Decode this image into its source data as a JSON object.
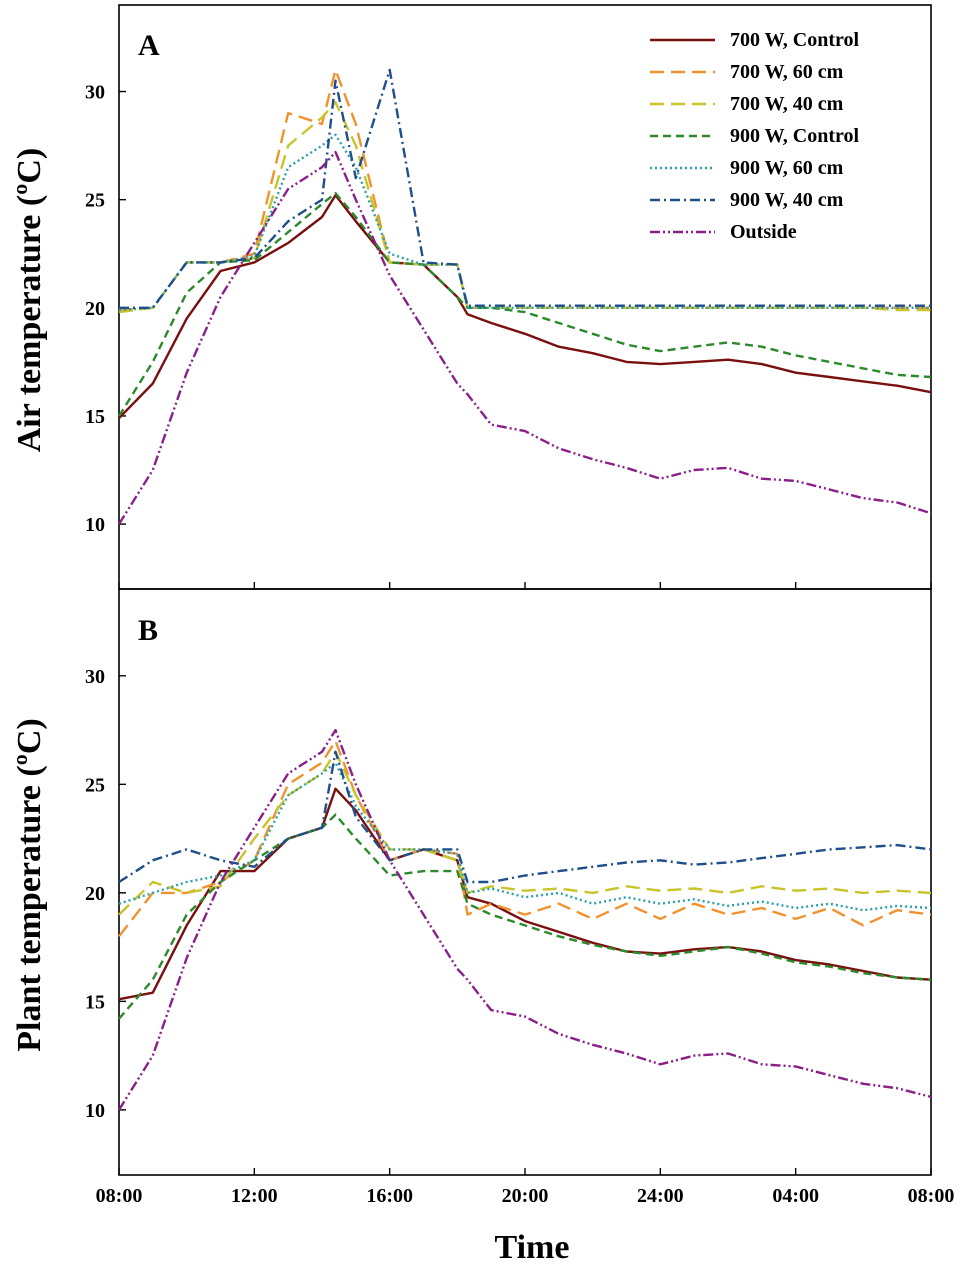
{
  "chart_data": {
    "type": "line",
    "xlabel": "Time",
    "x_ticks": [
      "08:00",
      "12:00",
      "16:00",
      "20:00",
      "24:00",
      "04:00",
      "08:00"
    ],
    "x_hours": [
      8,
      9,
      10,
      11,
      12,
      13,
      14,
      14.4,
      15,
      16,
      17,
      18,
      18.3,
      19,
      20,
      21,
      22,
      23,
      24,
      25,
      26,
      27,
      28,
      29,
      30,
      31,
      32
    ],
    "legend_position": "top-right",
    "series_styles": [
      {
        "name": "700 W, Control",
        "color": "#7a0f0f",
        "dash": ""
      },
      {
        "name": "700 W, 60 cm",
        "color": "#f0922e",
        "dash": "14,7"
      },
      {
        "name": "700 W, 40 cm",
        "color": "#c8c42a",
        "dash": "14,7"
      },
      {
        "name": "900 W, Control",
        "color": "#2b8a2b",
        "dash": "8,5"
      },
      {
        "name": "900 W, 60 cm",
        "color": "#2aa0a8",
        "dash": "2,3"
      },
      {
        "name": "900 W, 40 cm",
        "color": "#1f4f8a",
        "dash": "10,4,2,4"
      },
      {
        "name": "Outside",
        "color": "#8a1f8a",
        "dash": "10,3,2,3,2,3"
      }
    ],
    "panels": [
      {
        "label": "A",
        "ylabel": "Air temperature (ºC)",
        "ylim": [
          7,
          34
        ],
        "y_ticks": [
          10,
          15,
          20,
          25,
          30
        ],
        "series": [
          {
            "name": "700 W, Control",
            "values": [
              14.9,
              16.5,
              19.5,
              21.7,
              22.1,
              23.0,
              24.2,
              25.2,
              24.0,
              22.1,
              22.0,
              20.5,
              19.7,
              19.3,
              18.8,
              18.2,
              17.9,
              17.5,
              17.4,
              17.5,
              17.6,
              17.4,
              17.0,
              16.8,
              16.6,
              16.4,
              16.1
            ]
          },
          {
            "name": "700 W, 60 cm",
            "values": [
              19.9,
              20.0,
              22.1,
              22.1,
              22.5,
              29.0,
              28.5,
              31.0,
              28.5,
              22.1,
              22.0,
              22.0,
              20.0,
              20.0,
              20.0,
              20.0,
              20.0,
              20.0,
              20.0,
              20.0,
              20.0,
              20.0,
              20.0,
              20.0,
              20.0,
              20.0,
              20.0
            ]
          },
          {
            "name": "700 W, 40 cm",
            "values": [
              19.8,
              20.0,
              22.1,
              22.1,
              22.3,
              27.5,
              28.8,
              29.5,
              27.5,
              22.1,
              22.0,
              22.0,
              20.0,
              20.0,
              20.0,
              20.0,
              20.0,
              20.0,
              20.0,
              20.0,
              20.0,
              20.0,
              20.0,
              20.0,
              20.0,
              19.9,
              19.9
            ]
          },
          {
            "name": "900 W, Control",
            "values": [
              15.0,
              17.5,
              20.7,
              22.1,
              22.2,
              23.5,
              24.8,
              25.3,
              24.2,
              22.1,
              22.0,
              20.5,
              20.0,
              20.0,
              19.8,
              19.3,
              18.8,
              18.3,
              18.0,
              18.2,
              18.4,
              18.2,
              17.8,
              17.5,
              17.2,
              16.9,
              16.8
            ]
          },
          {
            "name": "900 W, 60 cm",
            "values": [
              19.9,
              20.0,
              22.1,
              22.1,
              22.4,
              26.5,
              27.5,
              28.0,
              26.5,
              22.5,
              22.0,
              22.0,
              20.0,
              20.0,
              20.0,
              20.0,
              20.0,
              20.0,
              20.0,
              20.0,
              20.0,
              20.0,
              20.0,
              20.0,
              20.0,
              20.0,
              20.0
            ]
          },
          {
            "name": "900 W, 40 cm",
            "values": [
              20.0,
              20.0,
              22.1,
              22.1,
              22.3,
              24.0,
              25.0,
              30.5,
              26.0,
              31.0,
              22.1,
              22.0,
              20.1,
              20.1,
              20.1,
              20.1,
              20.1,
              20.1,
              20.1,
              20.1,
              20.1,
              20.1,
              20.1,
              20.1,
              20.1,
              20.1,
              20.1
            ]
          },
          {
            "name": "Outside",
            "values": [
              10.0,
              12.5,
              17.0,
              20.5,
              23.0,
              25.5,
              26.5,
              27.2,
              25.0,
              21.5,
              19.0,
              16.5,
              16.0,
              14.6,
              14.3,
              13.5,
              13.0,
              12.6,
              12.1,
              12.5,
              12.6,
              12.1,
              12.0,
              11.6,
              11.2,
              11.0,
              10.5
            ]
          }
        ]
      },
      {
        "label": "B",
        "ylabel": "Plant temperature (ºC)",
        "ylim": [
          7,
          34
        ],
        "y_ticks": [
          10,
          15,
          20,
          25,
          30
        ],
        "series": [
          {
            "name": "700 W, Control",
            "values": [
              15.1,
              15.4,
              18.5,
              21.0,
              21.0,
              22.5,
              23.0,
              24.8,
              23.8,
              21.5,
              22.0,
              21.5,
              19.8,
              19.5,
              18.7,
              18.2,
              17.7,
              17.3,
              17.2,
              17.4,
              17.5,
              17.3,
              16.9,
              16.7,
              16.4,
              16.1,
              16.0
            ]
          },
          {
            "name": "700 W, 60 cm",
            "values": [
              18.0,
              20.0,
              20.0,
              20.5,
              21.5,
              25.0,
              26.0,
              27.0,
              24.5,
              21.5,
              22.0,
              21.8,
              19.0,
              19.5,
              19.0,
              19.5,
              18.8,
              19.5,
              18.8,
              19.5,
              19.0,
              19.3,
              18.8,
              19.3,
              18.5,
              19.2,
              19.0
            ]
          },
          {
            "name": "700 W, 40 cm",
            "values": [
              19.0,
              20.5,
              20.0,
              20.3,
              22.5,
              24.5,
              25.5,
              26.5,
              24.5,
              22.0,
              22.0,
              21.5,
              20.0,
              20.3,
              20.1,
              20.2,
              20.0,
              20.3,
              20.1,
              20.2,
              20.0,
              20.3,
              20.1,
              20.2,
              20.0,
              20.1,
              20.0
            ]
          },
          {
            "name": "900 W, Control",
            "values": [
              14.2,
              16.0,
              19.0,
              20.5,
              21.5,
              22.5,
              23.0,
              23.6,
              22.5,
              20.8,
              21.0,
              21.0,
              19.5,
              19.0,
              18.5,
              18.0,
              17.6,
              17.3,
              17.1,
              17.3,
              17.5,
              17.2,
              16.8,
              16.6,
              16.3,
              16.1,
              16.0
            ]
          },
          {
            "name": "900 W, 60 cm",
            "values": [
              19.5,
              20.0,
              20.5,
              20.8,
              21.5,
              24.5,
              25.5,
              26.0,
              24.0,
              22.0,
              22.0,
              21.8,
              20.0,
              20.2,
              19.8,
              20.0,
              19.5,
              19.8,
              19.5,
              19.7,
              19.4,
              19.6,
              19.3,
              19.5,
              19.2,
              19.4,
              19.3
            ]
          },
          {
            "name": "900 W, 40 cm",
            "values": [
              20.5,
              21.5,
              22.0,
              21.5,
              21.2,
              22.5,
              23.0,
              26.5,
              23.5,
              21.5,
              22.0,
              22.0,
              20.5,
              20.5,
              20.8,
              21.0,
              21.2,
              21.4,
              21.5,
              21.3,
              21.4,
              21.6,
              21.8,
              22.0,
              22.1,
              22.2,
              22.0
            ]
          },
          {
            "name": "Outside",
            "values": [
              10.0,
              12.5,
              17.0,
              20.5,
              23.0,
              25.5,
              26.5,
              27.5,
              25.0,
              21.5,
              19.0,
              16.5,
              16.0,
              14.6,
              14.3,
              13.5,
              13.0,
              12.6,
              12.1,
              12.5,
              12.6,
              12.1,
              12.0,
              11.6,
              11.2,
              11.0,
              10.6
            ]
          }
        ]
      }
    ]
  }
}
